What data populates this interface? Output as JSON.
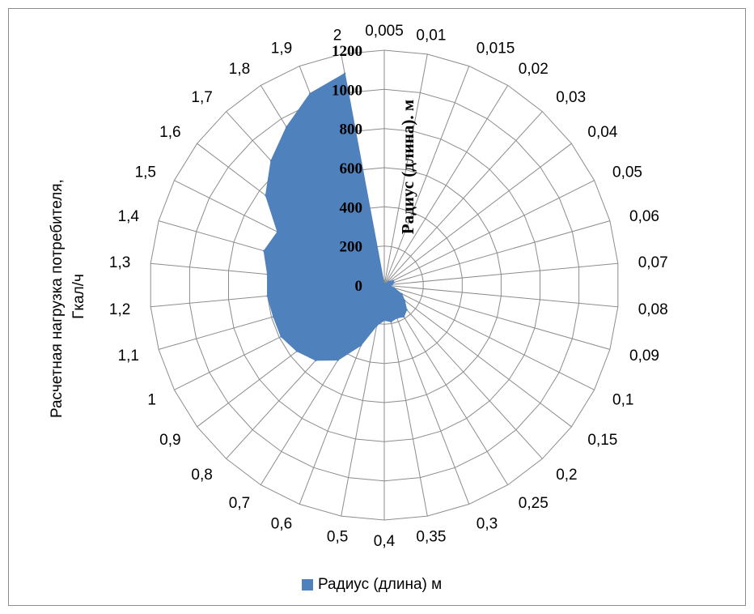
{
  "chart_data": {
    "type": "radar",
    "title": "",
    "categories": [
      "0,005",
      "0,01",
      "0,015",
      "0,02",
      "0,03",
      "0,04",
      "0,05",
      "0,06",
      "0,07",
      "0,08",
      "0,09",
      "0,1",
      "0,15",
      "0,2",
      "0,25",
      "0,3",
      "0,35",
      "0,4",
      "0,5",
      "0,6",
      "0,7",
      "0,8",
      "0,9",
      "1",
      "1,1",
      "1,2",
      "1,3",
      "1,4",
      "1,5",
      "1,6",
      "1,7",
      "1,8",
      "1,9",
      "2"
    ],
    "series": [
      {
        "name": "Радиус (длина) м",
        "color": "#4f81bd",
        "values": [
          0,
          0,
          0,
          0,
          10,
          30,
          50,
          50,
          40,
          30,
          50,
          100,
          130,
          170,
          190,
          180,
          190,
          180,
          210,
          330,
          450,
          520,
          560,
          590,
          590,
          600,
          600,
          640,
          610,
          760,
          860,
          950,
          1050,
          1100
        ]
      }
    ],
    "rlim": [
      0,
      1200
    ],
    "ticks": [
      "0",
      "200",
      "400",
      "600",
      "800",
      "1000",
      "1200"
    ],
    "ylabel_lines": [
      "Расчетная нагрузка потребителя,",
      "Гкал/ч"
    ],
    "radial_axis_title": "Радиус (длина). м",
    "legend_position": "bottom",
    "grid": true
  }
}
